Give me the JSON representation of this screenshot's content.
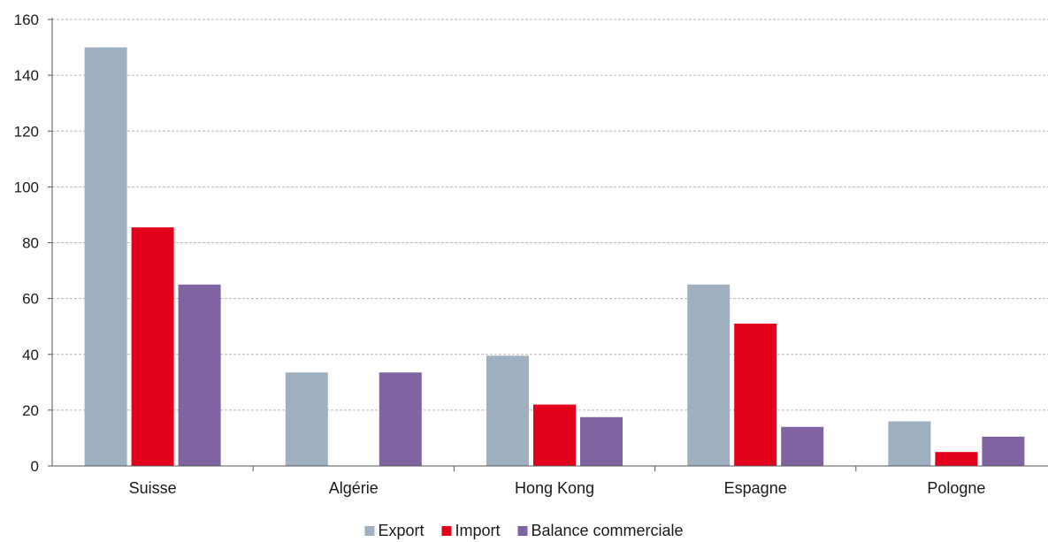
{
  "chart_data": {
    "type": "bar",
    "categories": [
      "Suisse",
      "Algérie",
      "Hong Kong",
      "Espagne",
      "Pologne"
    ],
    "series": [
      {
        "name": "Export",
        "color": "#9fb1c1",
        "values": [
          150,
          33.5,
          39.5,
          65,
          16
        ]
      },
      {
        "name": "Import",
        "color": "#e2001a",
        "values": [
          85.5,
          0,
          22,
          51,
          5
        ]
      },
      {
        "name": "Balance commerciale",
        "color": "#8064a2",
        "values": [
          65,
          33.5,
          17.5,
          14,
          10.5
        ]
      }
    ],
    "ylim": [
      0,
      160
    ],
    "yticks": [
      0,
      20,
      40,
      60,
      80,
      100,
      120,
      140,
      160
    ],
    "grid": true,
    "legend_position": "bottom-center",
    "title": "",
    "xlabel": "",
    "ylabel": ""
  }
}
